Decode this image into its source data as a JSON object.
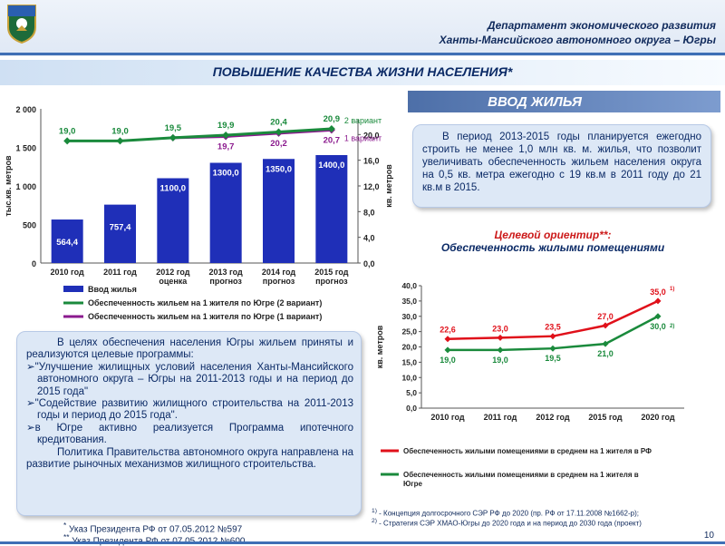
{
  "header": {
    "dept_line1": "Департамент экономического развития",
    "dept_line2": "Ханты-Мансийского автономного округа – Югры"
  },
  "title": "ПОВЫШЕНИЕ КАЧЕСТВА ЖИЗНИ НАСЕЛЕНИЯ*",
  "section_title": "ВВОД ЖИЛЬЯ",
  "info_text": "В период 2013-2015 годы планируется ежегодно строить не менее 1,0 млн кв. м. жилья, что позволит увеличивать обеспеченность жильем населения округа на 0,5 кв. метра ежегодно с 19 кв.м в 2011 году до 21 кв.м в 2015.",
  "target": {
    "line1": "Целевой ориентир**:",
    "line2": "Обеспеченность жилыми помещениями"
  },
  "programs": {
    "p1": "В целях обеспечения населения Югры жильем приняты и реализуются целевые программы:",
    "b1": "\"Улучшение жилищных условий населения Ханты-Мансийского автономного округа – Югры на 2011-2013 годы и на период до 2015 года\"",
    "b2": "\"Содействие развитию жилищного строительства на 2011-2013 годы и период до 2015 года\".",
    "b3": "в Югре активно реализуется Программа ипотечного кредитования.",
    "p2": "Политика Правительства автономного округа направлена на развитие рыночных механизмов жилищного строительства.",
    "bullet_glyph": "➢"
  },
  "footnotes": {
    "f1": "Указ Президента РФ от 07.05.2012 №597",
    "f1_mark": "*",
    "f2": "Указ Президента РФ от 07.05.2012 №600",
    "f2_mark": "**",
    "n1_mark": "1)",
    "n1": "- Концепция долгосрочного СЭР РФ до 2020 (пр. РФ от 17.11.2008 №1662-р);",
    "n2_mark": "2)",
    "n2": "- Стратегия СЭР ХМАО-Югры до 2020 года и на период до 2030 года (проект)"
  },
  "page_number": "10",
  "colors": {
    "bar": "#1f2fb8",
    "green": "#1a8a3c",
    "purple": "#8b1a8e",
    "red": "#e0101a",
    "navy": "#0b2a66"
  },
  "chart_data": [
    {
      "type": "bar",
      "categories": [
        "2010 год",
        "2011 год",
        "2012 год\nоценка",
        "2013 год\nпрогноз",
        "2014 год\nпрогноз",
        "2015 год\nпрогноз"
      ],
      "ylabel": "тыс.кв. метров",
      "ylim": [
        0,
        2000
      ],
      "y_ticks": [
        "0",
        "500",
        "1 000",
        "1 500",
        "2 000"
      ],
      "y2label": "кв. метров",
      "y2lim": [
        0,
        24
      ],
      "y2_ticks": [
        "0,0",
        "4,0",
        "8,0",
        "12,0",
        "16,0",
        "20,0"
      ],
      "series": [
        {
          "name": "Ввод жилья",
          "type": "bar",
          "values": [
            564.4,
            757.4,
            1100.0,
            1300.0,
            1350.0,
            1400.0
          ],
          "labels": [
            "564,4",
            "757,4",
            "1100,0",
            "1300,0",
            "1350,0",
            "1400,0"
          ]
        },
        {
          "name": "Обеспеченность жильем на 1 жителя по Югре (2 вариант)",
          "type": "line",
          "axis": "right",
          "values": [
            19.0,
            19.0,
            19.5,
            19.9,
            20.4,
            20.9
          ],
          "labels": [
            "19,0",
            "19,0",
            "19,5",
            "19,9",
            "20,4",
            "20,9"
          ]
        },
        {
          "name": "Обеспеченность жильем на 1 жителя по Югре (1 вариант)",
          "type": "line",
          "axis": "right",
          "values": [
            null,
            null,
            19.5,
            19.7,
            20.2,
            20.7
          ],
          "labels": [
            "",
            "",
            "",
            "19,7",
            "20,2",
            "20,7"
          ]
        }
      ],
      "annotations": [
        "2 вариант",
        "1 вариант"
      ]
    },
    {
      "type": "line",
      "categories": [
        "2010 год",
        "2011 год",
        "2012 год",
        "2015 год",
        "2020 год"
      ],
      "ylabel": "кв. метров",
      "ylim": [
        0,
        40
      ],
      "y_ticks": [
        "0,0",
        "5,0",
        "10,0",
        "15,0",
        "20,0",
        "25,0",
        "30,0",
        "35,0",
        "40,0"
      ],
      "series": [
        {
          "name": "Обеспеченность жилыми помещениями в среднем на 1 жителя в РФ",
          "values": [
            22.6,
            23.0,
            23.5,
            27.0,
            35.0
          ],
          "labels": [
            "22,6",
            "23,0",
            "23,5",
            "27,0",
            "35,0"
          ]
        },
        {
          "name": "Обеспеченность жилыми помещениями в среднем на 1 жителя в Югре",
          "values": [
            19.0,
            19.0,
            19.5,
            21.0,
            30.0
          ],
          "labels": [
            "19,0",
            "19,0",
            "19,5",
            "21,0",
            "30,0"
          ]
        }
      ],
      "end_label_marks": [
        "1)",
        "2)"
      ]
    }
  ]
}
